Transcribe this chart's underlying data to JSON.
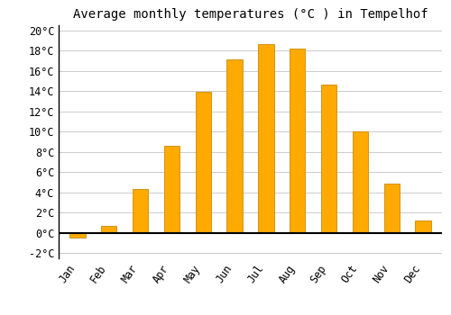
{
  "months": [
    "Jan",
    "Feb",
    "Mar",
    "Apr",
    "May",
    "Jun",
    "Jul",
    "Aug",
    "Sep",
    "Oct",
    "Nov",
    "Dec"
  ],
  "values": [
    -0.5,
    0.7,
    4.3,
    8.6,
    13.9,
    17.1,
    18.6,
    18.2,
    14.6,
    10.0,
    4.9,
    1.2
  ],
  "bar_color": "#FFAA00",
  "bar_edge_color": "#CC8800",
  "title": "Average monthly temperatures (°C ) in Tempelhof",
  "ylim": [
    -2.5,
    20.5
  ],
  "yticks": [
    -2,
    0,
    2,
    4,
    6,
    8,
    10,
    12,
    14,
    16,
    18,
    20
  ],
  "background_color": "#ffffff",
  "grid_color": "#cccccc",
  "title_fontsize": 10,
  "tick_fontsize": 8.5,
  "font_family": "monospace",
  "bar_width": 0.5
}
